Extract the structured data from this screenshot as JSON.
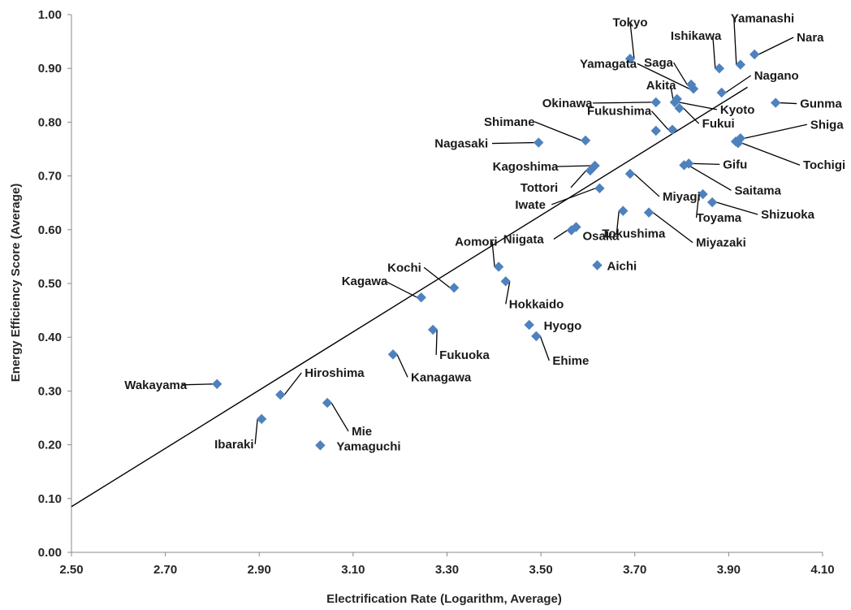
{
  "chart_data": {
    "type": "scatter",
    "title": "",
    "xlabel": "Electrification Rate (Logarithm, Average)",
    "ylabel": "Energy Efficiency Score (Average)",
    "xlim": [
      2.5,
      4.1
    ],
    "ylim": [
      0.0,
      1.0
    ],
    "x_ticks": [
      "2.50",
      "2.70",
      "2.90",
      "3.10",
      "3.30",
      "3.50",
      "3.70",
      "3.90",
      "4.10"
    ],
    "y_ticks": [
      "0.00",
      "0.10",
      "0.20",
      "0.30",
      "0.40",
      "0.50",
      "0.60",
      "0.70",
      "0.80",
      "0.90",
      "1.00"
    ],
    "grid": false,
    "legend": "none",
    "marker_color": "#4f81bd",
    "trendline": {
      "x": [
        2.5,
        3.94
      ],
      "y": [
        0.085,
        0.865
      ]
    },
    "points": [
      {
        "name": "Tokyo",
        "x": 3.69,
        "y": 0.918
      },
      {
        "name": "Yamanashi",
        "x": 3.925,
        "y": 0.907
      },
      {
        "name": "Nara",
        "x": 3.955,
        "y": 0.926
      },
      {
        "name": "Ishikawa",
        "x": 3.88,
        "y": 0.9
      },
      {
        "name": "Saga",
        "x": 3.82,
        "y": 0.87
      },
      {
        "name": "Yamagata",
        "x": 3.825,
        "y": 0.862
      },
      {
        "name": "Nagano",
        "x": 3.885,
        "y": 0.855
      },
      {
        "name": "Akita",
        "x": 3.79,
        "y": 0.843
      },
      {
        "name": "Kyoto",
        "x": 3.785,
        "y": 0.837
      },
      {
        "name": "Okinawa",
        "x": 3.745,
        "y": 0.837
      },
      {
        "name": "Gunma",
        "x": 4.0,
        "y": 0.836
      },
      {
        "name": "Fukui",
        "x": 3.795,
        "y": 0.826
      },
      {
        "name": "Fukushima",
        "x": 3.78,
        "y": 0.786
      },
      {
        "name": "",
        "x": 3.745,
        "y": 0.784
      },
      {
        "name": "Shiga",
        "x": 3.925,
        "y": 0.77
      },
      {
        "name": "Shimane",
        "x": 3.595,
        "y": 0.766
      },
      {
        "name": "",
        "x": 3.915,
        "y": 0.764
      },
      {
        "name": "Tochigi",
        "x": 3.92,
        "y": 0.761
      },
      {
        "name": "Nagasaki",
        "x": 3.495,
        "y": 0.762
      },
      {
        "name": "Gifu",
        "x": 3.815,
        "y": 0.723
      },
      {
        "name": "Saitama",
        "x": 3.805,
        "y": 0.72
      },
      {
        "name": "Kagoshima",
        "x": 3.615,
        "y": 0.719
      },
      {
        "name": "Tottori",
        "x": 3.605,
        "y": 0.71
      },
      {
        "name": "Miyagi",
        "x": 3.69,
        "y": 0.704
      },
      {
        "name": "Iwate",
        "x": 3.625,
        "y": 0.677
      },
      {
        "name": "Toyama",
        "x": 3.845,
        "y": 0.666
      },
      {
        "name": "Shizuoka",
        "x": 3.865,
        "y": 0.651
      },
      {
        "name": "Tokushima",
        "x": 3.675,
        "y": 0.635
      },
      {
        "name": "Miyazaki",
        "x": 3.73,
        "y": 0.632
      },
      {
        "name": "Osaka",
        "x": 3.575,
        "y": 0.605
      },
      {
        "name": "Niigata",
        "x": 3.565,
        "y": 0.599
      },
      {
        "name": "Aichi",
        "x": 3.62,
        "y": 0.534
      },
      {
        "name": "Aomori",
        "x": 3.41,
        "y": 0.531
      },
      {
        "name": "Hokkaido",
        "x": 3.425,
        "y": 0.504
      },
      {
        "name": "Kochi",
        "x": 3.315,
        "y": 0.492
      },
      {
        "name": "Kagawa",
        "x": 3.245,
        "y": 0.474
      },
      {
        "name": "Hyogo",
        "x": 3.475,
        "y": 0.423
      },
      {
        "name": "Fukuoka",
        "x": 3.27,
        "y": 0.414
      },
      {
        "name": "Ehime",
        "x": 3.49,
        "y": 0.402
      },
      {
        "name": "Kanagawa",
        "x": 3.185,
        "y": 0.368
      },
      {
        "name": "Wakayama",
        "x": 2.81,
        "y": 0.313
      },
      {
        "name": "Hiroshima",
        "x": 2.945,
        "y": 0.293
      },
      {
        "name": "Mie",
        "x": 3.045,
        "y": 0.278
      },
      {
        "name": "Ibaraki",
        "x": 2.905,
        "y": 0.248
      },
      {
        "name": "Yamaguchi",
        "x": 3.03,
        "y": 0.199
      }
    ]
  }
}
